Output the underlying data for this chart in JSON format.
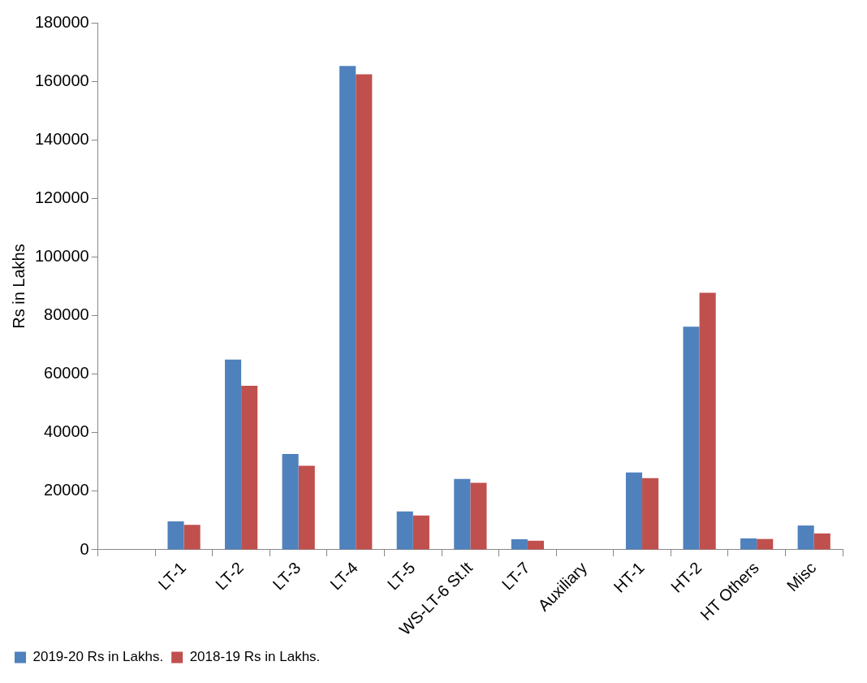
{
  "chart_data": {
    "type": "bar",
    "ylabel": "Rs in Lakhs",
    "categories": [
      null,
      "LT-1",
      "LT-2",
      "LT-3",
      "LT-4",
      "LT-5",
      "WS-LT-6 St.lt",
      "LT-7",
      "Auxiliary",
      "HT-1",
      "HT-2",
      "HT Others",
      "Misc"
    ],
    "series": [
      {
        "name": "2019-20 Rs in Lakhs.",
        "color": "#4f81bd",
        "values": [
          null,
          9700,
          65000,
          32700,
          165200,
          13100,
          24200,
          3600,
          null,
          26400,
          76200,
          3900,
          8300
        ]
      },
      {
        "name": "2018-19 Rs in Lakhs.",
        "color": "#c0504d",
        "values": [
          null,
          8500,
          56000,
          28700,
          162400,
          11700,
          22900,
          3100,
          null,
          24500,
          87800,
          3700,
          5600
        ]
      }
    ],
    "ylim": [
      0,
      180000
    ],
    "yticks": [
      0,
      20000,
      40000,
      60000,
      80000,
      100000,
      120000,
      140000,
      160000,
      180000
    ],
    "grid": false,
    "legend": "bottom left"
  }
}
